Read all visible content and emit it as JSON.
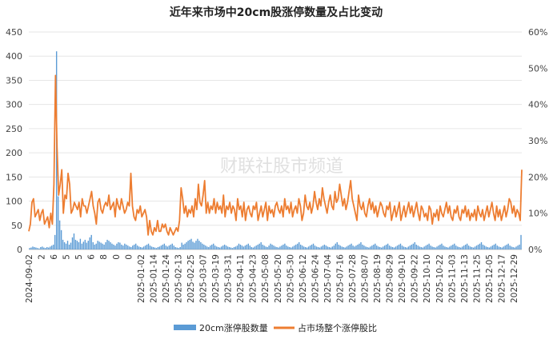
{
  "chart_data": {
    "type": "bar+line",
    "title": "近年来市场中20cm股涨停数量及占比变动",
    "watermark": "财联社股市频道",
    "left_axis": {
      "ylim": [
        0,
        450
      ],
      "ticks": [
        "0",
        "50",
        "100",
        "150",
        "200",
        "250",
        "300",
        "350",
        "400",
        "450"
      ]
    },
    "right_axis": {
      "ylim": [
        0,
        60
      ],
      "ticks": [
        "0%",
        "10%",
        "20%",
        "30%",
        "40%",
        "50%",
        "60%"
      ]
    },
    "x_tick_labels": [
      "2024-09-02",
      "2",
      "6",
      "5",
      "5",
      "6",
      "8",
      "0",
      "0",
      "2025-01-02",
      "2025-01-14",
      "2025-01-24",
      "2025-02-13",
      "2025-02-25",
      "2025-03-07",
      "2025-03-19",
      "2025-03-31",
      "2025-04-11",
      "2025-04-23",
      "2025-05-08",
      "2025-05-20",
      "2025-05-30",
      "2025-06-12",
      "2025-06-24",
      "2025-07-04",
      "2025-07-16",
      "2025-07-28",
      "2025-08-07",
      "2025-08-19",
      "2025-08-29",
      "2025-09-10",
      "2025-09-22",
      "2025-10-10",
      "2025-10-22",
      "2025-11-03",
      "2025-11-13",
      "2025-11-25",
      "2025-12-05",
      "2025-12-17",
      "2025-12-29"
    ],
    "series": [
      {
        "name": "20cm涨停股数量",
        "type": "bar",
        "color": "#5b9bd5",
        "axis": "left",
        "values": [
          3,
          4,
          6,
          5,
          4,
          3,
          2,
          5,
          6,
          4,
          3,
          5,
          4,
          6,
          8,
          10,
          30,
          410,
          110,
          60,
          40,
          20,
          15,
          12,
          18,
          10,
          14,
          25,
          33,
          20,
          18,
          15,
          22,
          12,
          16,
          20,
          14,
          18,
          25,
          30,
          15,
          10,
          12,
          18,
          16,
          14,
          12,
          10,
          15,
          20,
          18,
          15,
          12,
          10,
          8,
          12,
          15,
          14,
          10,
          8,
          12,
          10,
          8,
          6,
          5,
          8,
          10,
          12,
          8,
          6,
          5,
          4,
          6,
          8,
          10,
          12,
          8,
          6,
          5,
          4,
          3,
          5,
          6,
          8,
          10,
          12,
          8,
          6,
          8,
          10,
          12,
          8,
          5,
          4,
          3,
          5,
          14,
          10,
          12,
          15,
          18,
          20,
          22,
          16,
          14,
          18,
          22,
          18,
          15,
          12,
          10,
          8,
          6,
          5,
          8,
          10,
          12,
          8,
          6,
          5,
          4,
          6,
          8,
          10,
          8,
          6,
          5,
          4,
          3,
          5,
          6,
          8,
          12,
          10,
          8,
          6,
          8,
          10,
          12,
          8,
          5,
          4,
          6,
          8,
          10,
          12,
          15,
          10,
          8,
          6,
          5,
          8,
          12,
          10,
          8,
          6,
          5,
          4,
          6,
          8,
          10,
          12,
          8,
          6,
          5,
          4,
          6,
          8,
          10,
          12,
          15,
          10,
          8,
          6,
          5,
          4,
          6,
          8,
          10,
          12,
          8,
          6,
          5,
          4,
          6,
          8,
          10,
          8,
          6,
          5,
          4,
          6,
          8,
          12,
          15,
          10,
          8,
          6,
          5,
          4,
          6,
          8,
          10,
          12,
          8,
          6,
          8,
          10,
          12,
          15,
          10,
          8,
          6,
          5,
          4,
          6,
          8,
          10,
          12,
          8,
          6,
          5,
          4,
          6,
          8,
          10,
          12,
          8,
          6,
          5,
          4,
          6,
          8,
          10,
          12,
          8,
          6,
          5,
          4,
          6,
          8,
          10,
          12,
          15,
          10,
          8,
          6,
          5,
          4,
          6,
          8,
          10,
          12,
          8,
          6,
          5,
          4,
          6,
          8,
          10,
          12,
          8,
          6,
          5,
          4,
          6,
          8,
          10,
          12,
          8,
          6,
          5,
          4,
          6,
          8,
          10,
          12,
          8,
          6,
          5,
          4,
          6,
          8,
          10,
          12,
          15,
          10,
          8,
          6,
          5,
          4,
          6,
          8,
          10,
          12,
          8,
          6,
          5,
          4,
          6,
          8,
          10,
          12,
          8,
          6,
          5,
          4,
          6,
          8,
          10,
          30
        ]
      },
      {
        "name": "占市场整个涨停股比",
        "type": "line",
        "color": "#ed7d31",
        "axis": "right",
        "values": [
          5,
          7,
          13,
          14,
          9,
          10,
          11,
          8,
          10,
          11,
          7,
          8,
          9,
          6,
          10,
          7,
          18,
          48,
          28,
          15,
          18,
          22,
          10,
          15,
          14,
          21,
          18,
          10,
          11,
          13,
          12,
          11,
          13,
          9,
          14,
          12,
          12,
          10,
          12,
          14,
          16,
          12,
          10,
          7,
          13,
          14,
          11,
          10,
          12,
          13,
          12,
          15,
          11,
          12,
          13,
          9,
          14,
          12,
          11,
          14,
          12,
          10,
          11,
          13,
          12,
          21,
          12,
          9,
          8,
          11,
          10,
          12,
          9,
          10,
          11,
          9,
          4,
          8,
          5,
          4,
          6,
          5,
          8,
          5,
          5,
          7,
          6,
          7,
          5,
          4,
          6,
          5,
          4,
          5,
          6,
          5,
          8,
          17,
          14,
          10,
          12,
          9,
          11,
          10,
          12,
          9,
          14,
          11,
          18,
          13,
          12,
          15,
          19,
          10,
          13,
          10,
          12,
          11,
          14,
          10,
          13,
          11,
          12,
          10,
          15,
          9,
          12,
          11,
          13,
          10,
          12,
          11,
          8,
          14,
          11,
          12,
          9,
          13,
          8,
          11,
          12,
          10,
          9,
          12,
          11,
          13,
          8,
          10,
          12,
          9,
          11,
          13,
          8,
          12,
          10,
          11,
          9,
          12,
          13,
          11,
          10,
          12,
          9,
          14,
          11,
          12,
          10,
          13,
          9,
          11,
          12,
          10,
          14,
          12,
          8,
          10,
          15,
          12,
          11,
          13,
          10,
          12,
          16,
          13,
          11,
          14,
          12,
          17,
          14,
          12,
          10,
          13,
          15,
          12,
          11,
          16,
          13,
          14,
          18,
          15,
          12,
          14,
          11,
          13,
          16,
          19,
          14,
          12,
          10,
          8,
          15,
          12,
          11,
          13,
          10,
          9,
          12,
          14,
          11,
          13,
          10,
          12,
          9,
          11,
          13,
          12,
          10,
          9,
          12,
          11,
          13,
          8,
          10,
          12,
          9,
          11,
          13,
          8,
          10,
          12,
          9,
          11,
          13,
          10,
          12,
          9,
          11,
          13,
          10,
          8,
          12,
          11,
          9,
          10,
          8,
          12,
          11,
          7,
          10,
          9,
          11,
          8,
          12,
          10,
          9,
          11,
          13,
          10,
          12,
          9,
          8,
          11,
          10,
          12,
          9,
          8,
          11,
          10,
          12,
          9,
          11,
          8,
          10,
          9,
          11,
          8,
          12,
          10,
          9,
          11,
          8,
          10,
          12,
          9,
          11,
          13,
          10,
          8,
          12,
          9,
          11,
          8,
          10,
          12,
          9,
          11,
          14,
          13,
          10,
          12,
          9,
          11,
          10,
          8,
          22
        ]
      }
    ],
    "legend": {
      "position": "bottom"
    }
  }
}
